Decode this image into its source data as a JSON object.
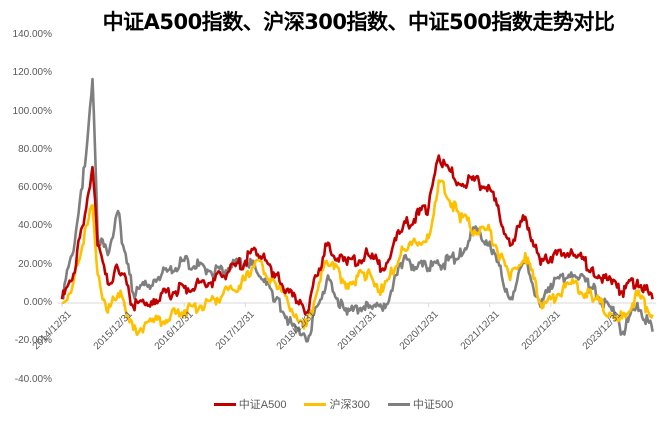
{
  "chart_data": {
    "type": "line",
    "title": "中证A500指数、沪深300指数、中证500指数走势对比",
    "xlabel": "",
    "ylabel": "",
    "ylim": [
      -0.4,
      1.4
    ],
    "y_ticks": [
      "140.00%",
      "120.00%",
      "100.00%",
      "80.00%",
      "60.00%",
      "40.00%",
      "20.00%",
      "0.00%",
      "-20.00%",
      "-40.00%"
    ],
    "y_tick_values": [
      1.4,
      1.2,
      1.0,
      0.8,
      0.6,
      0.4,
      0.2,
      0.0,
      -0.2,
      -0.4
    ],
    "x_ticks": [
      "2014/12/31",
      "2015/12/31",
      "2016/12/31",
      "2017/12/31",
      "2018/12/31",
      "2019/12/31",
      "2020/12/31",
      "2021/12/31",
      "2022/12/31",
      "2023/12/31"
    ],
    "grid": false,
    "legend_position": "bottom",
    "x": [
      "2014-12",
      "2015-02",
      "2015-04",
      "2015-06",
      "2015-07",
      "2015-09",
      "2015-11",
      "2015-12",
      "2016-02",
      "2016-06",
      "2016-12",
      "2017-06",
      "2017-12",
      "2018-02",
      "2018-06",
      "2018-10",
      "2018-12",
      "2019-02",
      "2019-04",
      "2019-08",
      "2019-12",
      "2020-03",
      "2020-07",
      "2020-12",
      "2021-02",
      "2021-06",
      "2021-09",
      "2021-12",
      "2022-04",
      "2022-07",
      "2022-10",
      "2022-12",
      "2023-04",
      "2023-08",
      "2023-12",
      "2024-02",
      "2024-05",
      "2024-08"
    ],
    "series": [
      {
        "name": "中证A500",
        "color": "#C00000",
        "values": [
          0.02,
          0.12,
          0.4,
          0.71,
          0.3,
          0.1,
          0.18,
          0.15,
          -0.02,
          0.02,
          0.08,
          0.12,
          0.22,
          0.28,
          0.15,
          0.0,
          -0.05,
          0.14,
          0.3,
          0.2,
          0.26,
          0.18,
          0.4,
          0.5,
          0.77,
          0.62,
          0.64,
          0.6,
          0.3,
          0.45,
          0.2,
          0.24,
          0.28,
          0.18,
          0.1,
          0.06,
          0.12,
          0.02
        ]
      },
      {
        "name": "沪深300",
        "color": "#FFC000",
        "values": [
          0.0,
          0.08,
          0.3,
          0.51,
          0.15,
          -0.05,
          0.05,
          0.02,
          -0.14,
          -0.1,
          -0.04,
          0.02,
          0.12,
          0.22,
          0.1,
          -0.06,
          -0.12,
          0.05,
          0.22,
          0.1,
          0.16,
          0.06,
          0.28,
          0.34,
          0.64,
          0.46,
          0.38,
          0.38,
          0.12,
          0.26,
          0.0,
          0.02,
          0.1,
          0.04,
          -0.06,
          -0.08,
          0.04,
          -0.06
        ]
      },
      {
        "name": "中证500",
        "color": "#7F7F7F",
        "values": [
          0.03,
          0.25,
          0.6,
          1.17,
          0.35,
          0.25,
          0.48,
          0.3,
          0.05,
          0.12,
          0.22,
          0.16,
          0.22,
          0.18,
          0.02,
          -0.15,
          -0.2,
          -0.02,
          0.12,
          -0.06,
          0.0,
          -0.04,
          0.22,
          0.18,
          0.2,
          0.24,
          0.38,
          0.32,
          0.02,
          0.22,
          -0.02,
          0.1,
          0.16,
          0.08,
          -0.04,
          -0.16,
          0.0,
          -0.15
        ]
      }
    ]
  },
  "legend": [
    {
      "label": "中证A500",
      "color": "#C00000"
    },
    {
      "label": "沪深300",
      "color": "#FFC000"
    },
    {
      "label": "中证500",
      "color": "#7F7F7F"
    }
  ]
}
